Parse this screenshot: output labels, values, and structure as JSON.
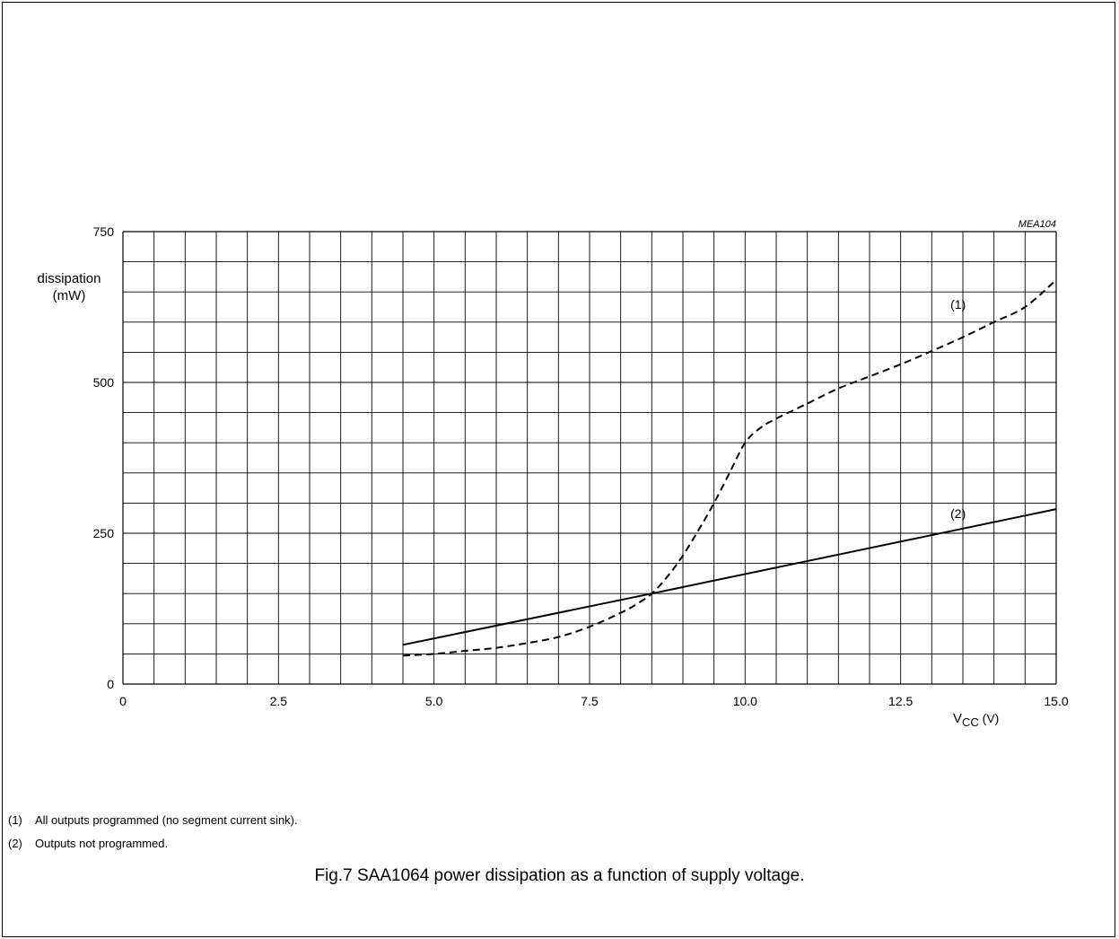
{
  "chart_data": {
    "type": "line",
    "code": "MEA104",
    "ylabel_line1": "dissipation",
    "ylabel_line2": "(mW)",
    "xlabel_main": "V",
    "xlabel_sub": "CC",
    "xlabel_unit": "(V)",
    "xlim": [
      0,
      15
    ],
    "ylim": [
      0,
      750
    ],
    "x_ticks": [
      {
        "value": 0,
        "label": "0"
      },
      {
        "value": 2.5,
        "label": "2.5"
      },
      {
        "value": 5,
        "label": "5.0"
      },
      {
        "value": 7.5,
        "label": "7.5"
      },
      {
        "value": 10,
        "label": "10.0"
      },
      {
        "value": 12.5,
        "label": "12.5"
      },
      {
        "value": 15,
        "label": "15.0"
      }
    ],
    "y_ticks": [
      {
        "value": 0,
        "label": "0"
      },
      {
        "value": 250,
        "label": "250"
      },
      {
        "value": 500,
        "label": "500"
      },
      {
        "value": 750,
        "label": "750"
      }
    ],
    "x_grid_step": 0.5,
    "y_grid_step": 50,
    "grid": true,
    "series": [
      {
        "name": "(1)",
        "style": "dashed",
        "label_at": {
          "x": 13.3,
          "y": 622
        },
        "x": [
          4.5,
          5.0,
          5.5,
          6.0,
          6.5,
          7.0,
          7.5,
          8.0,
          8.25,
          8.5,
          8.75,
          9.0,
          9.25,
          9.5,
          9.75,
          10.0,
          10.25,
          10.5,
          11.0,
          11.5,
          12.0,
          12.5,
          13.0,
          13.5,
          14.0,
          14.5,
          15.0
        ],
        "y": [
          47,
          50,
          55,
          60,
          68,
          78,
          95,
          118,
          132,
          150,
          178,
          213,
          255,
          300,
          350,
          400,
          425,
          440,
          465,
          490,
          510,
          530,
          552,
          575,
          600,
          625,
          670
        ]
      },
      {
        "name": "(2)",
        "style": "solid",
        "label_at": {
          "x": 13.3,
          "y": 275
        },
        "x": [
          4.5,
          8.5,
          15.0
        ],
        "y": [
          65,
          150,
          290
        ]
      }
    ]
  },
  "notes": [
    {
      "num": "(1)",
      "text": "All outputs programmed (no segment current sink)."
    },
    {
      "num": "(2)",
      "text": "Outputs not programmed."
    }
  ],
  "caption": "Fig.7  SAA1064 power dissipation as a function of supply voltage."
}
